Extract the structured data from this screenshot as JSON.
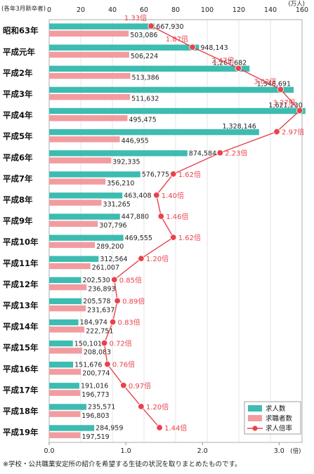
{
  "header_note": "(各年3月新卒者)",
  "footnote": "※学校・公共職業安定所の紹介を希望する生徒の状況を取りまとめたものです。",
  "chart_data": {
    "type": "bar",
    "orientation": "horizontal",
    "categories": [
      "昭和63年",
      "平成元年",
      "平成2年",
      "平成3年",
      "平成4年",
      "平成5年",
      "平成6年",
      "平成7年",
      "平成8年",
      "平成9年",
      "平成10年",
      "平成11年",
      "平成12年",
      "平成13年",
      "平成14年",
      "平成15年",
      "平成16年",
      "平成17年",
      "平成18年",
      "平成19年"
    ],
    "top_axis": {
      "unit": "(万人)",
      "min": 0,
      "max": 160,
      "ticks": [
        0,
        20,
        40,
        60,
        80,
        100,
        120,
        140,
        160
      ]
    },
    "bottom_axis": {
      "unit": "(倍)",
      "min": 0,
      "max": 3.3,
      "ticks": [
        0.0,
        1.0,
        2.0,
        3.0
      ],
      "tick_labels": [
        "0.0",
        "1.0",
        "2.0",
        "3.0"
      ]
    },
    "series": [
      {
        "name": "求人数",
        "type": "bar",
        "color": "#3dbcb1",
        "values": [
          667930,
          948143,
          1267682,
          1546691,
          1621230,
          1328146,
          874584,
          576775,
          463408,
          447880,
          469555,
          312564,
          202530,
          205578,
          184974,
          150101,
          151676,
          191016,
          235571,
          284959
        ],
        "labels": [
          "667,930",
          "948,143",
          "1,267,682",
          "1,546,691",
          "1,621,230",
          "1,328,146",
          "874,584",
          "576,775",
          "463,408",
          "447,880",
          "469,555",
          "312,564",
          "202,530",
          "205,578",
          "184,974",
          "150,101",
          "151,676",
          "191,016",
          "235,571",
          "284,959"
        ]
      },
      {
        "name": "求職者数",
        "type": "bar",
        "color": "#f29ca0",
        "values": [
          503086,
          506224,
          513386,
          511632,
          495475,
          446955,
          392335,
          356210,
          331265,
          307796,
          289200,
          261007,
          236893,
          231637,
          222751,
          208083,
          200774,
          196773,
          196803,
          197519
        ],
        "labels": [
          "503,086",
          "506,224",
          "513,386",
          "511,632",
          "495,475",
          "446,955",
          "392,335",
          "356,210",
          "331,265",
          "307,796",
          "289,200",
          "261,007",
          "236,893",
          "231,637",
          "222,751",
          "208,083",
          "200,774",
          "196,773",
          "196,803",
          "197,519"
        ]
      },
      {
        "name": "求人倍率",
        "type": "line",
        "color": "#e8424b",
        "values": [
          1.33,
          1.87,
          2.47,
          3.02,
          3.27,
          2.97,
          2.23,
          1.62,
          1.4,
          1.46,
          1.62,
          1.2,
          0.85,
          0.89,
          0.83,
          0.72,
          0.76,
          0.97,
          1.2,
          1.44
        ],
        "labels": [
          "1.33倍",
          "1.87倍",
          "2.47倍",
          "3.02倍",
          "3.27倍",
          "2.97倍",
          "2.23倍",
          "1.62倍",
          "1.40倍",
          "1.46倍",
          "1.62倍",
          "1.20倍",
          "0.85倍",
          "0.89倍",
          "0.83倍",
          "0.72倍",
          "0.76倍",
          "0.97倍",
          "1.20倍",
          "1.44倍"
        ]
      }
    ],
    "legend_position": "bottom-right"
  }
}
